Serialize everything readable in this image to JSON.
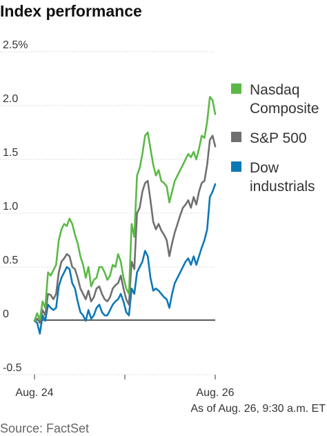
{
  "chart_data": {
    "type": "line",
    "title": "Index performance",
    "ylim": [
      -0.5,
      2.5
    ],
    "yticks": [
      {
        "value": 2.5,
        "label": "2.5%"
      },
      {
        "value": 2.0,
        "label": "2.0"
      },
      {
        "value": 1.5,
        "label": "1.5"
      },
      {
        "value": 1.0,
        "label": "1.0"
      },
      {
        "value": 0.5,
        "label": "0.5"
      },
      {
        "value": 0,
        "label": "0"
      },
      {
        "value": -0.5,
        "label": "-0.5"
      }
    ],
    "xticks": [
      {
        "label": "Aug. 24"
      },
      {
        "label": "Aug. 26"
      }
    ],
    "grid": true,
    "legend_position": "right",
    "note": "As of Aug. 26, 9:30 a.m. ET",
    "source": "Source: FactSet",
    "series": [
      {
        "name": "Nasdaq Composite",
        "legend_lines": [
          "Nasdaq",
          "Composite"
        ],
        "color": "#5ab946",
        "values": [
          0,
          0.07,
          0.01,
          0.18,
          0.12,
          0.45,
          0.42,
          0.47,
          0.52,
          0.75,
          0.85,
          0.9,
          0.88,
          0.95,
          0.9,
          0.8,
          0.72,
          0.6,
          0.52,
          0.4,
          0.5,
          0.32,
          0.38,
          0.4,
          0.5,
          0.5,
          0.45,
          0.38,
          0.42,
          0.52,
          0.5,
          0.62,
          0.55,
          0.4,
          0.3,
          0.25,
          0.9,
          0.78,
          1.35,
          1.42,
          1.55,
          1.72,
          1.75,
          1.6,
          1.45,
          1.35,
          1.4,
          1.3,
          1.28,
          1.25,
          1.1,
          1.2,
          1.3,
          1.35,
          1.4,
          1.45,
          1.5,
          1.55,
          1.52,
          1.57,
          1.5,
          1.6,
          1.72,
          1.7,
          1.85,
          2.08,
          2.05,
          1.92
        ]
      },
      {
        "name": "S&P 500",
        "legend_lines": [
          "S&P 500"
        ],
        "color": "#6f6f6f",
        "values": [
          0,
          0.02,
          -0.02,
          0.1,
          0.05,
          0.25,
          0.24,
          0.2,
          0.25,
          0.45,
          0.55,
          0.58,
          0.62,
          0.6,
          0.5,
          0.48,
          0.4,
          0.3,
          0.25,
          0.2,
          0.28,
          0.18,
          0.22,
          0.3,
          0.32,
          0.25,
          0.2,
          0.18,
          0.22,
          0.3,
          0.33,
          0.35,
          0.42,
          0.3,
          0.2,
          0.15,
          0.55,
          0.48,
          1.0,
          1.05,
          1.2,
          1.28,
          1.3,
          1.12,
          0.92,
          0.85,
          0.9,
          0.84,
          0.8,
          0.75,
          0.6,
          0.72,
          0.82,
          0.9,
          0.98,
          1.05,
          1.08,
          1.12,
          1.05,
          1.15,
          1.08,
          1.2,
          1.28,
          1.3,
          1.45,
          1.68,
          1.72,
          1.62
        ]
      },
      {
        "name": "Dow industrials",
        "legend_lines": [
          "Dow",
          "industrials"
        ],
        "color": "#0b78b6",
        "values": [
          0,
          -0.02,
          -0.12,
          0.05,
          0.0,
          0.15,
          0.12,
          0.1,
          0.12,
          0.32,
          0.4,
          0.45,
          0.5,
          0.48,
          0.35,
          0.3,
          0.18,
          0.08,
          0.05,
          0.0,
          0.1,
          0.02,
          0.05,
          0.12,
          0.15,
          0.08,
          0.05,
          0.05,
          0.1,
          0.15,
          0.18,
          0.2,
          0.25,
          0.18,
          0.08,
          0.05,
          0.3,
          0.25,
          0.45,
          0.5,
          0.55,
          0.65,
          0.6,
          0.4,
          0.28,
          0.3,
          0.28,
          0.25,
          0.22,
          0.2,
          0.12,
          0.25,
          0.35,
          0.4,
          0.45,
          0.5,
          0.55,
          0.58,
          0.52,
          0.6,
          0.52,
          0.6,
          0.68,
          0.75,
          0.85,
          1.15,
          1.2,
          1.27
        ]
      }
    ]
  }
}
